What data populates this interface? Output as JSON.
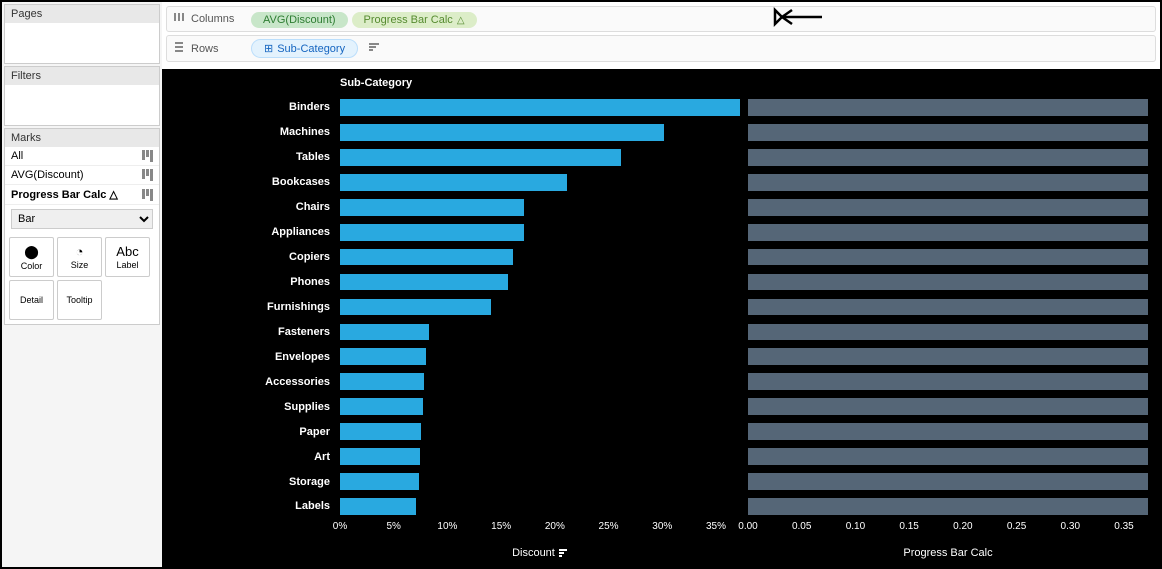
{
  "shelves": {
    "columns_label": "Columns",
    "rows_label": "Rows",
    "columns_pills": [
      {
        "text": "AVG(Discount)",
        "cls": "pill-green"
      },
      {
        "text": "Progress Bar Calc",
        "cls": "pill-green-light",
        "delta": "△"
      }
    ],
    "rows_pills": [
      {
        "text": "Sub-Category",
        "cls": "pill-blue",
        "prefix": "⊞"
      }
    ]
  },
  "panels": {
    "pages": "Pages",
    "filters": "Filters",
    "marks": "Marks"
  },
  "marks": {
    "rows": [
      {
        "label": "All",
        "active": false
      },
      {
        "label": "AVG(Discount)",
        "active": false
      },
      {
        "label": "Progress Bar Calc △",
        "active": true
      }
    ],
    "type_select": "Bar",
    "buttons": [
      {
        "label": "Color",
        "icon": "⬤"
      },
      {
        "label": "Size",
        "icon": "◔"
      },
      {
        "label": "Label",
        "icon": "Abc"
      },
      {
        "label": "Detail",
        "icon": ""
      },
      {
        "label": "Tooltip",
        "icon": ""
      }
    ]
  },
  "chart": {
    "header": "Sub-Category",
    "categories": [
      "Binders",
      "Machines",
      "Tables",
      "Bookcases",
      "Chairs",
      "Appliances",
      "Copiers",
      "Phones",
      "Furnishings",
      "Fasteners",
      "Envelopes",
      "Accessories",
      "Supplies",
      "Paper",
      "Art",
      "Storage",
      "Labels"
    ],
    "discount_values": [
      37,
      30,
      26,
      21,
      17,
      17,
      16,
      15.5,
      14,
      8.2,
      8,
      7.8,
      7.7,
      7.5,
      7.4,
      7.3,
      7
    ],
    "discount_max": 37,
    "progress_values": [
      0.37,
      0.37,
      0.37,
      0.37,
      0.37,
      0.37,
      0.37,
      0.37,
      0.37,
      0.37,
      0.37,
      0.37,
      0.37,
      0.37,
      0.37,
      0.37,
      0.37
    ],
    "progress_max": 0.37,
    "discount_ticks": [
      "0%",
      "5%",
      "10%",
      "15%",
      "20%",
      "25%",
      "30%",
      "35%"
    ],
    "progress_ticks": [
      "0.00",
      "0.05",
      "0.10",
      "0.15",
      "0.20",
      "0.25",
      "0.30",
      "0.35"
    ],
    "discount_axis_title": "Discount",
    "progress_axis_title": "Progress Bar Calc",
    "bar_color_left": "#29a9e0",
    "bar_color_right": "#556677"
  }
}
